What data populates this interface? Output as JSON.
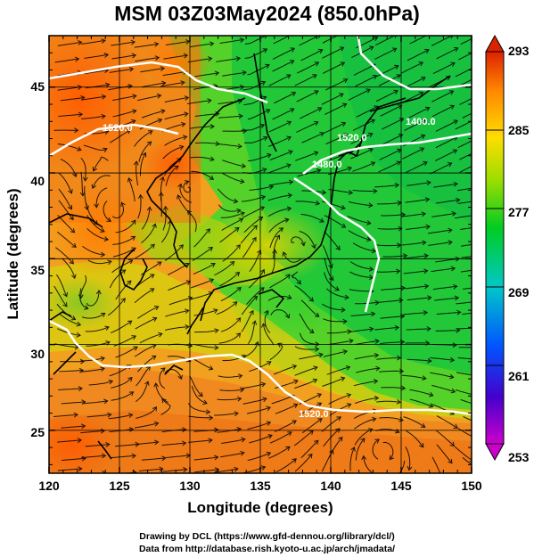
{
  "title": "MSM 03Z03May2024 (850.0hPa)",
  "axes": {
    "xlabel": "Longitude (degrees)",
    "ylabel": "Latitude  (degrees)",
    "xticks": [
      "120",
      "125",
      "130",
      "135",
      "140",
      "145",
      "150"
    ],
    "yticks": [
      "25",
      "30",
      "35",
      "40",
      "45"
    ]
  },
  "colorbar": {
    "ticks": [
      "293",
      "285",
      "277",
      "269",
      "261",
      "253"
    ],
    "values": [
      293,
      285,
      277,
      269,
      261,
      253
    ],
    "range": [
      253,
      293
    ],
    "colors": [
      "#cc00cc",
      "#4400cc",
      "#0055ff",
      "#00c8c8",
      "#00cc22",
      "#99dd00",
      "#ffdd00",
      "#ff8800",
      "#dd2200"
    ]
  },
  "contour_labels": [
    "1520.0",
    "1520.0",
    "1480.0",
    "1400.0",
    "1520.0"
  ],
  "credits": {
    "line1": "Drawing by DCL (https://www.gfd-dennou.org/library/dcl/)",
    "line2": "Data from http://database.rish.kyoto-u.ac.jp/arch/jmadata/"
  },
  "map": {
    "extent": {
      "lon": [
        120,
        150
      ],
      "lat": [
        22.5,
        48
      ]
    },
    "field": "850hPa temperature (K) with streamlines and geopotential height contours"
  }
}
